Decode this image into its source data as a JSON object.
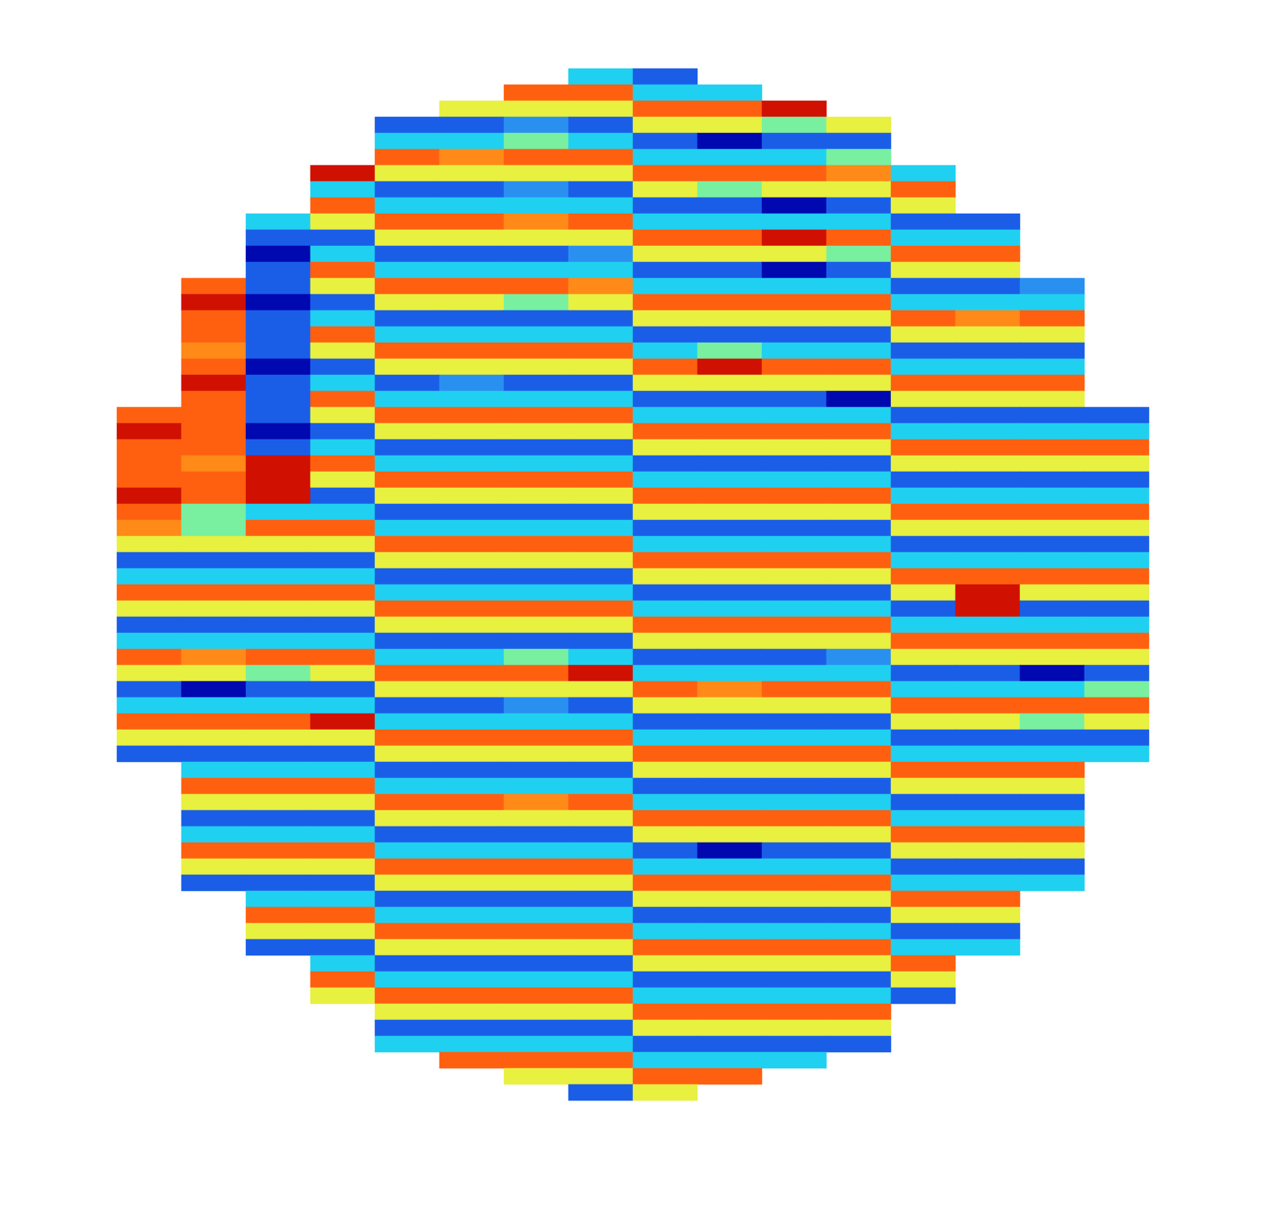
{
  "chart_data": {
    "type": "heatmap",
    "tick_labels": false,
    "grid": false,
    "color_range": [
      0,
      9
    ],
    "cells": [
      [
        null,
        null,
        null,
        null,
        null,
        null,
        null,
        3,
        1,
        null,
        null,
        null,
        null,
        null,
        null,
        null
      ],
      [
        null,
        null,
        null,
        null,
        null,
        null,
        8,
        8,
        3,
        3,
        null,
        null,
        null,
        null,
        null,
        null
      ],
      [
        null,
        null,
        null,
        null,
        null,
        5,
        5,
        5,
        8,
        8,
        9,
        null,
        null,
        null,
        null,
        null
      ],
      [
        null,
        null,
        null,
        null,
        1,
        1,
        2,
        1,
        5,
        5,
        4,
        5,
        null,
        null,
        null,
        null
      ],
      [
        null,
        null,
        null,
        null,
        3,
        3,
        4,
        3,
        1,
        0,
        1,
        1,
        null,
        null,
        null,
        null
      ],
      [
        null,
        null,
        null,
        null,
        8,
        7,
        8,
        8,
        3,
        3,
        3,
        4,
        null,
        null,
        null,
        null
      ],
      [
        null,
        null,
        null,
        9,
        5,
        5,
        5,
        5,
        8,
        8,
        8,
        7,
        3,
        null,
        null,
        null
      ],
      [
        null,
        null,
        null,
        3,
        1,
        1,
        2,
        1,
        5,
        4,
        5,
        5,
        8,
        null,
        null,
        null
      ],
      [
        null,
        null,
        null,
        8,
        3,
        3,
        3,
        3,
        1,
        1,
        0,
        1,
        5,
        null,
        null,
        null
      ],
      [
        null,
        null,
        3,
        5,
        8,
        8,
        7,
        8,
        3,
        3,
        3,
        3,
        1,
        1,
        null,
        null
      ],
      [
        null,
        null,
        1,
        1,
        5,
        5,
        5,
        5,
        8,
        8,
        9,
        8,
        3,
        3,
        null,
        null
      ],
      [
        null,
        null,
        0,
        3,
        1,
        1,
        1,
        2,
        5,
        5,
        5,
        4,
        8,
        8,
        null,
        null
      ],
      [
        null,
        null,
        1,
        8,
        3,
        3,
        3,
        3,
        1,
        1,
        0,
        1,
        5,
        5,
        null,
        null
      ],
      [
        null,
        8,
        1,
        5,
        8,
        8,
        8,
        7,
        3,
        3,
        3,
        3,
        1,
        1,
        2,
        null
      ],
      [
        null,
        9,
        0,
        1,
        5,
        5,
        4,
        5,
        8,
        8,
        8,
        8,
        3,
        3,
        3,
        null
      ],
      [
        null,
        8,
        1,
        3,
        1,
        1,
        1,
        1,
        5,
        5,
        5,
        5,
        8,
        7,
        8,
        null
      ],
      [
        null,
        8,
        1,
        8,
        3,
        3,
        3,
        3,
        1,
        1,
        1,
        1,
        5,
        5,
        5,
        null
      ],
      [
        null,
        7,
        1,
        5,
        8,
        8,
        8,
        8,
        3,
        4,
        3,
        3,
        1,
        1,
        1,
        null
      ],
      [
        null,
        8,
        0,
        1,
        5,
        5,
        5,
        5,
        8,
        9,
        8,
        8,
        3,
        3,
        3,
        null
      ],
      [
        null,
        9,
        1,
        3,
        1,
        2,
        1,
        1,
        5,
        5,
        5,
        5,
        8,
        8,
        8,
        null
      ],
      [
        null,
        8,
        1,
        8,
        3,
        3,
        3,
        3,
        1,
        1,
        1,
        0,
        5,
        5,
        5,
        null
      ],
      [
        8,
        8,
        1,
        5,
        8,
        8,
        8,
        8,
        3,
        3,
        3,
        3,
        1,
        1,
        1,
        1
      ],
      [
        9,
        8,
        0,
        1,
        5,
        5,
        5,
        5,
        8,
        8,
        8,
        8,
        3,
        3,
        3,
        3
      ],
      [
        8,
        8,
        1,
        3,
        1,
        1,
        1,
        1,
        5,
        5,
        5,
        5,
        8,
        8,
        8,
        8
      ],
      [
        8,
        7,
        9,
        8,
        3,
        3,
        3,
        3,
        1,
        1,
        1,
        1,
        5,
        5,
        5,
        5
      ],
      [
        8,
        8,
        9,
        5,
        8,
        8,
        8,
        8,
        3,
        3,
        3,
        3,
        1,
        1,
        1,
        1
      ],
      [
        9,
        8,
        9,
        1,
        5,
        5,
        5,
        5,
        8,
        8,
        8,
        8,
        3,
        3,
        3,
        3
      ],
      [
        8,
        4,
        3,
        3,
        1,
        1,
        1,
        1,
        5,
        5,
        5,
        5,
        8,
        8,
        8,
        8
      ],
      [
        7,
        4,
        8,
        8,
        3,
        3,
        3,
        3,
        1,
        1,
        1,
        1,
        5,
        5,
        5,
        5
      ],
      [
        5,
        5,
        5,
        5,
        8,
        8,
        8,
        8,
        3,
        3,
        3,
        3,
        1,
        1,
        1,
        1
      ],
      [
        1,
        1,
        1,
        1,
        5,
        5,
        5,
        5,
        8,
        8,
        8,
        8,
        3,
        3,
        3,
        3
      ],
      [
        3,
        3,
        3,
        3,
        1,
        1,
        1,
        1,
        5,
        5,
        5,
        5,
        8,
        8,
        8,
        8
      ],
      [
        8,
        8,
        8,
        8,
        3,
        3,
        3,
        3,
        1,
        1,
        1,
        1,
        5,
        9,
        5,
        5
      ],
      [
        5,
        5,
        5,
        5,
        8,
        8,
        8,
        8,
        3,
        3,
        3,
        3,
        1,
        9,
        1,
        1
      ],
      [
        1,
        1,
        1,
        1,
        5,
        5,
        5,
        5,
        8,
        8,
        8,
        8,
        3,
        3,
        3,
        3
      ],
      [
        3,
        3,
        3,
        3,
        1,
        1,
        1,
        1,
        5,
        5,
        5,
        5,
        8,
        8,
        8,
        8
      ],
      [
        8,
        7,
        8,
        8,
        3,
        3,
        4,
        3,
        1,
        1,
        1,
        2,
        5,
        5,
        5,
        5
      ],
      [
        5,
        5,
        4,
        5,
        8,
        8,
        8,
        9,
        3,
        3,
        3,
        3,
        1,
        1,
        0,
        1
      ],
      [
        1,
        0,
        1,
        1,
        5,
        5,
        5,
        5,
        8,
        7,
        8,
        8,
        3,
        3,
        3,
        4
      ],
      [
        3,
        3,
        3,
        3,
        1,
        1,
        2,
        1,
        5,
        5,
        5,
        5,
        8,
        8,
        8,
        8
      ],
      [
        8,
        8,
        8,
        9,
        3,
        3,
        3,
        3,
        1,
        1,
        1,
        1,
        5,
        5,
        4,
        5
      ],
      [
        5,
        5,
        5,
        5,
        8,
        8,
        8,
        8,
        3,
        3,
        3,
        3,
        1,
        1,
        1,
        1
      ],
      [
        1,
        1,
        1,
        1,
        5,
        5,
        5,
        5,
        8,
        8,
        8,
        8,
        3,
        3,
        3,
        3
      ],
      [
        null,
        3,
        3,
        3,
        1,
        1,
        1,
        1,
        5,
        5,
        5,
        5,
        8,
        8,
        8,
        null
      ],
      [
        null,
        8,
        8,
        8,
        3,
        3,
        3,
        3,
        1,
        1,
        1,
        1,
        5,
        5,
        5,
        null
      ],
      [
        null,
        5,
        5,
        5,
        8,
        8,
        7,
        8,
        3,
        3,
        3,
        3,
        1,
        1,
        1,
        null
      ],
      [
        null,
        1,
        1,
        1,
        5,
        5,
        5,
        5,
        8,
        8,
        8,
        8,
        3,
        3,
        3,
        null
      ],
      [
        null,
        3,
        3,
        3,
        1,
        1,
        1,
        1,
        5,
        5,
        5,
        5,
        8,
        8,
        8,
        null
      ],
      [
        null,
        8,
        8,
        8,
        3,
        3,
        3,
        3,
        1,
        0,
        1,
        1,
        5,
        5,
        5,
        null
      ],
      [
        null,
        5,
        5,
        5,
        8,
        8,
        8,
        8,
        3,
        3,
        3,
        3,
        1,
        1,
        1,
        null
      ],
      [
        null,
        1,
        1,
        1,
        5,
        5,
        5,
        5,
        8,
        8,
        8,
        8,
        3,
        3,
        3,
        null
      ],
      [
        null,
        null,
        3,
        3,
        1,
        1,
        1,
        1,
        5,
        5,
        5,
        5,
        8,
        8,
        null,
        null
      ],
      [
        null,
        null,
        8,
        8,
        3,
        3,
        3,
        3,
        1,
        1,
        1,
        1,
        5,
        5,
        null,
        null
      ],
      [
        null,
        null,
        5,
        5,
        8,
        8,
        8,
        8,
        3,
        3,
        3,
        3,
        1,
        1,
        null,
        null
      ],
      [
        null,
        null,
        1,
        1,
        5,
        5,
        5,
        5,
        8,
        8,
        8,
        8,
        3,
        3,
        null,
        null
      ],
      [
        null,
        null,
        null,
        3,
        1,
        1,
        1,
        1,
        5,
        5,
        5,
        5,
        8,
        null,
        null,
        null
      ],
      [
        null,
        null,
        null,
        8,
        3,
        3,
        3,
        3,
        1,
        1,
        1,
        1,
        5,
        null,
        null,
        null
      ],
      [
        null,
        null,
        null,
        5,
        8,
        8,
        8,
        8,
        3,
        3,
        3,
        3,
        1,
        null,
        null,
        null
      ],
      [
        null,
        null,
        null,
        null,
        5,
        5,
        5,
        5,
        8,
        8,
        8,
        8,
        null,
        null,
        null,
        null
      ],
      [
        null,
        null,
        null,
        null,
        1,
        1,
        1,
        1,
        5,
        5,
        5,
        5,
        null,
        null,
        null,
        null
      ],
      [
        null,
        null,
        null,
        null,
        3,
        3,
        3,
        3,
        1,
        1,
        1,
        1,
        null,
        null,
        null,
        null
      ],
      [
        null,
        null,
        null,
        null,
        null,
        8,
        8,
        8,
        3,
        3,
        3,
        null,
        null,
        null,
        null,
        null
      ],
      [
        null,
        null,
        null,
        null,
        null,
        null,
        5,
        5,
        8,
        8,
        null,
        null,
        null,
        null,
        null,
        null
      ],
      [
        null,
        null,
        null,
        null,
        null,
        null,
        null,
        1,
        5,
        null,
        null,
        null,
        null,
        null,
        null,
        null
      ]
    ]
  }
}
